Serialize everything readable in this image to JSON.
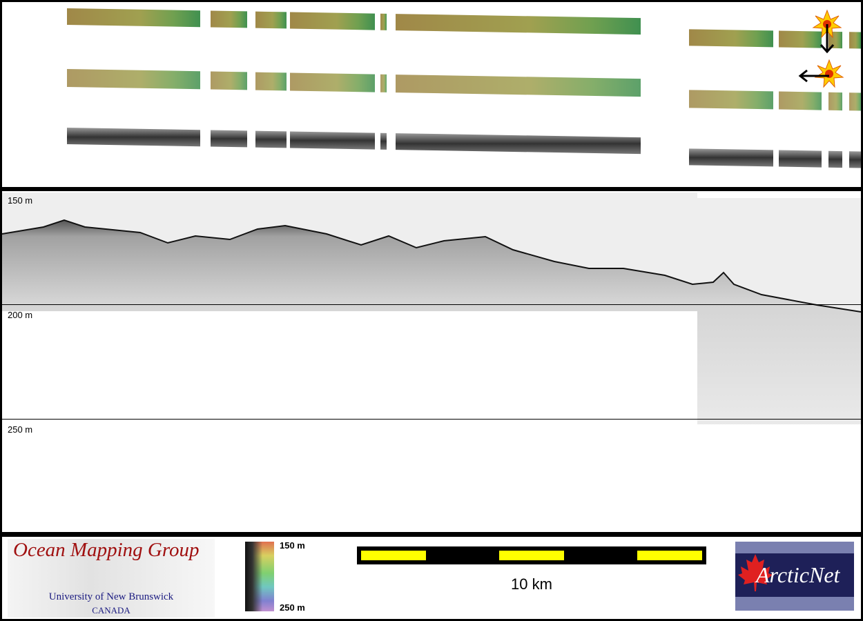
{
  "profile": {
    "depth_labels": [
      "150 m",
      "200 m",
      "250 m"
    ]
  },
  "colorbar": {
    "top_label": "150 m",
    "bottom_label": "250 m"
  },
  "scale_bar": {
    "label": "10 km"
  },
  "logos": {
    "omg_title": "Ocean Mapping Group",
    "omg_line1": "University of New Brunswick",
    "omg_line2": "CANADA",
    "arcticnet": "ArcticNet"
  },
  "icons": {
    "sun_markers": "explosion-star-icon",
    "arrows": [
      "arrow-down-icon",
      "arrow-left-icon"
    ]
  }
}
